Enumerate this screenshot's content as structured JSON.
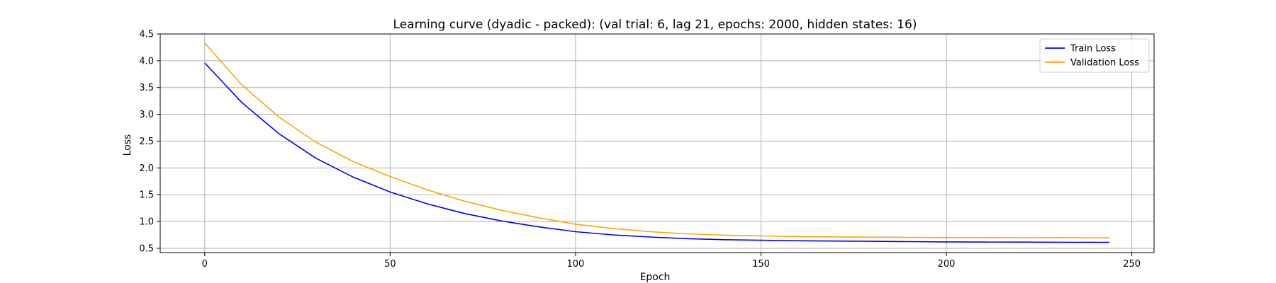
{
  "chart_data": {
    "type": "line",
    "title": "Learning curve (dyadic - packed): (val trial: 6, lag 21, epochs: 2000, hidden states: 16)",
    "xlabel": "Epoch",
    "ylabel": "Loss",
    "xlim": [
      -12,
      256
    ],
    "ylim": [
      0.42,
      4.5
    ],
    "xticks": [
      0,
      50,
      100,
      150,
      200,
      250
    ],
    "yticks": [
      0.5,
      1.0,
      1.5,
      2.0,
      2.5,
      3.0,
      3.5,
      4.0,
      4.5
    ],
    "xtick_labels": [
      "0",
      "50",
      "100",
      "150",
      "200",
      "250"
    ],
    "ytick_labels": [
      "0.5",
      "1.0",
      "1.5",
      "2.0",
      "2.5",
      "3.0",
      "3.5",
      "4.0",
      "4.5"
    ],
    "grid": true,
    "legend_position": "top-right",
    "series": [
      {
        "name": "Train Loss",
        "color": "#0000ff",
        "x": [
          0,
          10,
          20,
          30,
          40,
          50,
          60,
          70,
          80,
          90,
          100,
          110,
          120,
          130,
          140,
          150,
          160,
          170,
          180,
          190,
          200,
          210,
          220,
          230,
          244
        ],
        "y": [
          3.96,
          3.22,
          2.64,
          2.18,
          1.83,
          1.55,
          1.33,
          1.15,
          1.01,
          0.9,
          0.81,
          0.75,
          0.71,
          0.68,
          0.66,
          0.65,
          0.64,
          0.635,
          0.63,
          0.625,
          0.62,
          0.617,
          0.615,
          0.613,
          0.61
        ]
      },
      {
        "name": "Validation Loss",
        "color": "#ffa500",
        "x": [
          0,
          10,
          20,
          30,
          40,
          50,
          60,
          70,
          80,
          90,
          100,
          110,
          120,
          130,
          140,
          150,
          160,
          170,
          180,
          190,
          200,
          210,
          220,
          230,
          244
        ],
        "y": [
          4.33,
          3.55,
          2.95,
          2.48,
          2.12,
          1.84,
          1.59,
          1.38,
          1.21,
          1.07,
          0.95,
          0.87,
          0.81,
          0.77,
          0.745,
          0.73,
          0.72,
          0.713,
          0.708,
          0.704,
          0.7,
          0.698,
          0.697,
          0.696,
          0.695
        ]
      }
    ]
  }
}
